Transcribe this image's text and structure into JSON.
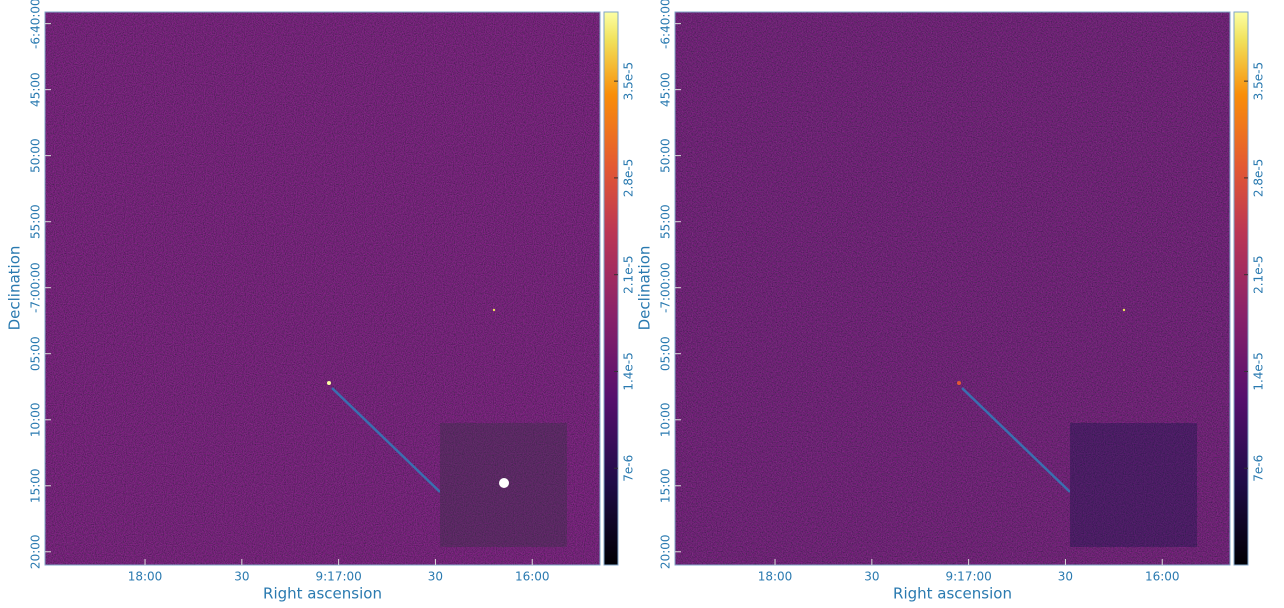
{
  "chart_data": [
    {
      "type": "image",
      "xlabel": "Right ascension",
      "ylabel": "Declination",
      "xlim": [
        33511,
        33339
      ],
      "xticks": [
        {
          "value": 33480,
          "label": "18:00"
        },
        {
          "value": 33450,
          "label": "30"
        },
        {
          "value": 33420,
          "label": "9:17:00"
        },
        {
          "value": 33390,
          "label": "30"
        },
        {
          "value": 33360,
          "label": "16:00"
        }
      ],
      "ylim": [
        -7.35,
        -6.652
      ],
      "yticks": [
        {
          "value": -6.6667,
          "label": "-6:40:00"
        },
        {
          "value": -6.75,
          "label": "45:00"
        },
        {
          "value": -6.8333,
          "label": "50:00"
        },
        {
          "value": -6.9167,
          "label": "55:00"
        },
        {
          "value": -7.0,
          "label": "-7:00:00"
        },
        {
          "value": -7.0833,
          "label": "05:00"
        },
        {
          "value": -7.1667,
          "label": "10:00"
        },
        {
          "value": -7.25,
          "label": "15:00"
        },
        {
          "value": -7.3333,
          "label": "20:00"
        }
      ],
      "clim": [
        0,
        4e-05
      ],
      "cticks": [
        {
          "value": 7e-06,
          "label": "7e-6"
        },
        {
          "value": 1.4e-05,
          "label": "1.4e-5"
        },
        {
          "value": 2.1e-05,
          "label": "2.1e-5"
        },
        {
          "value": 2.8e-05,
          "label": "2.8e-5"
        },
        {
          "value": 3.5e-05,
          "label": "3.5e-5"
        }
      ]
    },
    {
      "type": "image",
      "xlabel": "Right ascension",
      "ylabel": "Declination",
      "xlim": [
        33511,
        33339
      ],
      "xticks": [
        {
          "value": 33480,
          "label": "18:00"
        },
        {
          "value": 33450,
          "label": "30"
        },
        {
          "value": 33420,
          "label": "9:17:00"
        },
        {
          "value": 33390,
          "label": "30"
        },
        {
          "value": 33360,
          "label": "16:00"
        }
      ],
      "ylim": [
        -7.35,
        -6.652
      ],
      "yticks": [
        {
          "value": -6.6667,
          "label": "-6:40:00"
        },
        {
          "value": -6.75,
          "label": "45:00"
        },
        {
          "value": -6.8333,
          "label": "50:00"
        },
        {
          "value": -6.9167,
          "label": "55:00"
        },
        {
          "value": -7.0,
          "label": "-7:00:00"
        },
        {
          "value": -7.0833,
          "label": "05:00"
        },
        {
          "value": -7.1667,
          "label": "10:00"
        },
        {
          "value": -7.25,
          "label": "15:00"
        },
        {
          "value": -7.3333,
          "label": "20:00"
        }
      ],
      "clim": [
        0,
        4e-05
      ],
      "cticks": [
        {
          "value": 7e-06,
          "label": "7e-6"
        },
        {
          "value": 1.4e-05,
          "label": "1.4e-5"
        },
        {
          "value": 2.1e-05,
          "label": "2.1e-5"
        },
        {
          "value": 2.8e-05,
          "label": "2.8e-5"
        },
        {
          "value": 3.5e-05,
          "label": "3.5e-5"
        }
      ]
    }
  ]
}
